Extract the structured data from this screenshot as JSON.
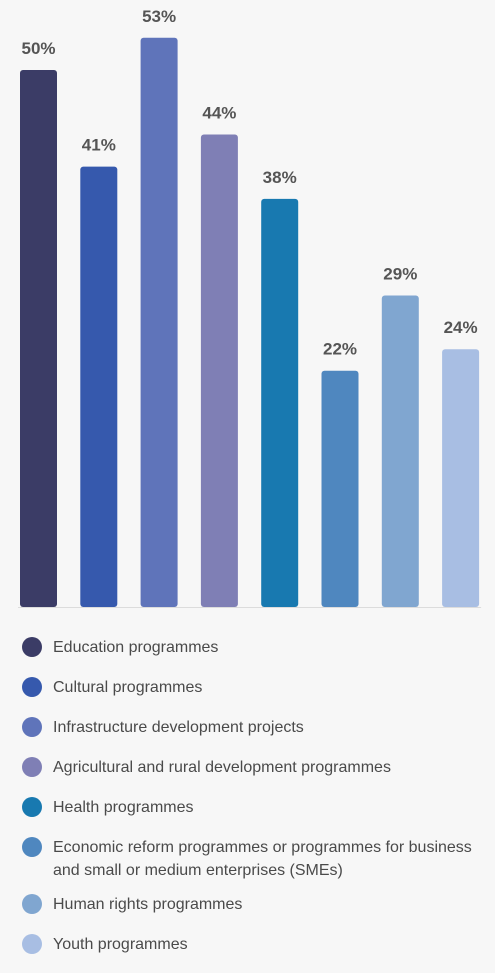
{
  "chart_data": {
    "type": "bar",
    "categories": [
      "Education programmes",
      "Cultural programmes",
      "Infrastructure development projects",
      "Agricultural and rural development programmes",
      "Health programmes",
      "Economic reform programmes or programmes for business and small or medium enterprises (SMEs)",
      "Human rights programmes",
      "Youth programmes"
    ],
    "values": [
      50,
      41,
      53,
      44,
      38,
      22,
      29,
      24
    ],
    "data_labels": [
      "50%",
      "41%",
      "53%",
      "44%",
      "38%",
      "22%",
      "29%",
      "24%"
    ],
    "colors": [
      "#3b3c66",
      "#3659ad",
      "#5f74ba",
      "#7f7fb5",
      "#1879b0",
      "#4f87bf",
      "#80a6d0",
      "#a8bee3"
    ],
    "unit": "%",
    "ylim": [
      0,
      58
    ],
    "grid": false,
    "legend_position": "bottom",
    "title": "",
    "xlabel": "",
    "ylabel": ""
  }
}
